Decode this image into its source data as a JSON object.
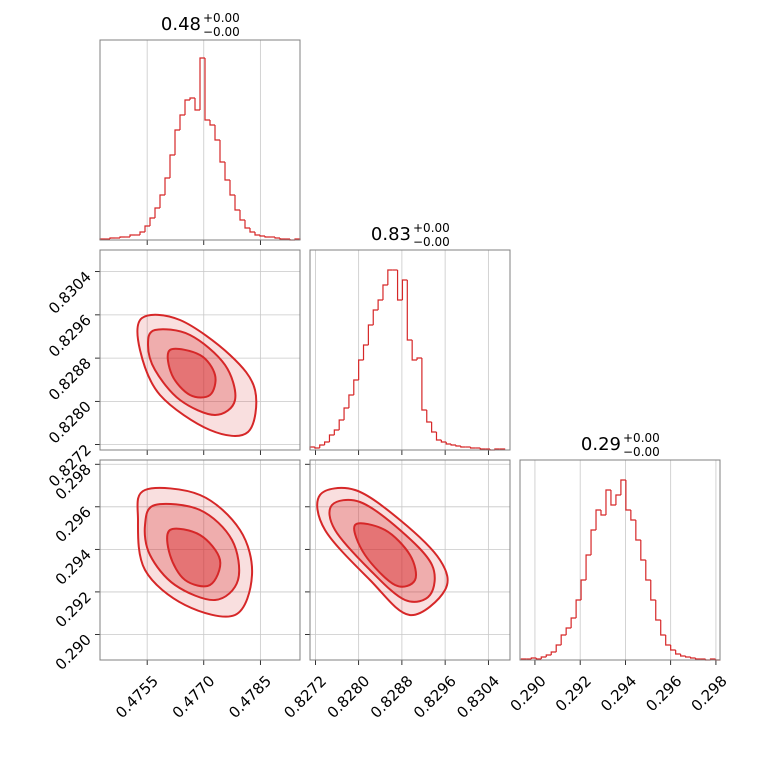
{
  "chart_data": [
    {
      "type": "histogram",
      "title": {
        "value": "0.48",
        "plus": "+0.00",
        "minus": "−0.00"
      },
      "color": "#d62728",
      "grid": true,
      "xlim": [
        0.47425,
        0.47955
      ],
      "ylim": [
        0,
        200
      ],
      "xticks": [
        0.4755,
        {
          "value": 0.477,
          "label": "0.4770"
        },
        0.4785
      ],
      "bins": [
        0.47425,
        0.4743825,
        0.474515,
        0.4746475,
        0.47478,
        0.4749125,
        0.475045,
        0.4751775,
        0.47531,
        0.4754425,
        0.475575,
        0.4757075,
        0.47584,
        0.4759725,
        0.476105,
        0.4762375,
        0.47637,
        0.4765025,
        0.476635,
        0.4767675,
        0.4769,
        0.4770325,
        0.477165,
        0.4772975,
        0.47743,
        0.4775625,
        0.477695,
        0.4778275,
        0.47796,
        0.4780925,
        0.478225,
        0.4783575,
        0.47849,
        0.4786225,
        0.478755,
        0.4788875,
        0.47902,
        0.4791525,
        0.479285,
        0.4794175,
        0.47955
      ],
      "counts": [
        1,
        1,
        2,
        2,
        3,
        3,
        5,
        5,
        8,
        14,
        22,
        32,
        45,
        62,
        85,
        110,
        125,
        140,
        142,
        130,
        182,
        120,
        115,
        100,
        78,
        60,
        45,
        30,
        20,
        12,
        8,
        5,
        4,
        3,
        3,
        2,
        1,
        1,
        0,
        1
      ]
    },
    {
      "type": "contour",
      "color": "#d62728",
      "grid": true,
      "xlim": [
        0.47425,
        0.47955
      ],
      "ylim": [
        0.8271,
        0.8308
      ],
      "xticks": [
        0.4755,
        {
          "value": 0.477,
          "label": "0.4770"
        },
        0.4785
      ],
      "yticks": [
        0.8272,
        {
          "value": 0.828,
          "label": "0.8280"
        },
        0.8288,
        0.8296,
        0.8304
      ],
      "contours": [
        [
          [
            0.475363,
            0.829542
          ],
          [
            0.47637,
            0.829505
          ],
          [
            0.477695,
            0.828858
          ],
          [
            0.478358,
            0.82821
          ],
          [
            0.478172,
            0.827433
          ],
          [
            0.477165,
            0.82747
          ],
          [
            0.47584,
            0.828118
          ],
          [
            0.47531,
            0.82895
          ]
        ],
        [
          [
            0.475708,
            0.82932
          ],
          [
            0.476635,
            0.829228
          ],
          [
            0.477563,
            0.828673
          ],
          [
            0.477828,
            0.828025
          ],
          [
            0.477298,
            0.827748
          ],
          [
            0.47637,
            0.828025
          ],
          [
            0.475708,
            0.82858
          ],
          [
            0.475522,
            0.829043
          ]
        ],
        [
          [
            0.476105,
            0.82895
          ],
          [
            0.4769,
            0.828858
          ],
          [
            0.477298,
            0.828488
          ],
          [
            0.477165,
            0.828118
          ],
          [
            0.476635,
            0.828118
          ],
          [
            0.476158,
            0.828488
          ]
        ]
      ]
    },
    {
      "type": "histogram",
      "title": {
        "value": "0.83",
        "plus": "+0.00",
        "minus": "−0.00"
      },
      "color": "#d62728",
      "grid": true,
      "xlim": [
        0.8271,
        0.8308
      ],
      "ylim": [
        0,
        200
      ],
      "xticks": [
        0.8272,
        {
          "value": 0.828,
          "label": "0.8280"
        },
        0.8288,
        0.8296,
        0.8304
      ],
      "bins": [
        0.8271,
        0.82719,
        0.82728,
        0.82737,
        0.82746,
        0.82755,
        0.82764,
        0.82773,
        0.82782,
        0.82791,
        0.828,
        0.82809,
        0.82818,
        0.82827,
        0.82836,
        0.82845,
        0.82854,
        0.82863,
        0.82872,
        0.82881,
        0.8289,
        0.82899,
        0.82908,
        0.82917,
        0.82926,
        0.82935,
        0.82944,
        0.82953,
        0.82962,
        0.82971,
        0.8298,
        0.82989,
        0.82998,
        0.83007,
        0.83016,
        0.83025,
        0.83034,
        0.83043,
        0.83052,
        0.83061,
        0.8307
      ],
      "counts": [
        3,
        2,
        5,
        8,
        15,
        20,
        30,
        42,
        55,
        70,
        90,
        105,
        125,
        140,
        150,
        165,
        180,
        180,
        150,
        170,
        110,
        90,
        92,
        40,
        28,
        18,
        10,
        8,
        6,
        5,
        4,
        3,
        3,
        2,
        2,
        1,
        1,
        0,
        1,
        1
      ]
    },
    {
      "type": "contour",
      "color": "#d62728",
      "grid": true,
      "xlim": [
        0.47425,
        0.47955
      ],
      "ylim": [
        0.2888,
        0.2982
      ],
      "xticks": [
        0.4755,
        {
          "value": 0.477,
          "label": "0.4770"
        },
        0.4785
      ],
      "yticks": [
        {
          "value": 0.29,
          "label": "0.290"
        },
        0.292,
        0.294,
        0.296,
        0.298
      ],
      "contours": [
        [
          [
            0.475443,
            0.29679
          ],
          [
            0.4769,
            0.296555
          ],
          [
            0.47796,
            0.29491
          ],
          [
            0.478278,
            0.292795
          ],
          [
            0.477828,
            0.290915
          ],
          [
            0.476503,
            0.291385
          ],
          [
            0.475443,
            0.29303
          ],
          [
            0.475257,
            0.29538
          ]
        ],
        [
          [
            0.475708,
            0.296085
          ],
          [
            0.4769,
            0.29585
          ],
          [
            0.477748,
            0.29444
          ],
          [
            0.477907,
            0.29256
          ],
          [
            0.477298,
            0.29162
          ],
          [
            0.476238,
            0.292325
          ],
          [
            0.475575,
            0.293735
          ],
          [
            0.475443,
            0.295145
          ]
        ],
        [
          [
            0.476105,
            0.29491
          ],
          [
            0.4769,
            0.294675
          ],
          [
            0.47743,
            0.2935
          ],
          [
            0.477165,
            0.292325
          ],
          [
            0.476503,
            0.29256
          ],
          [
            0.476105,
            0.293735
          ]
        ]
      ]
    },
    {
      "type": "contour",
      "color": "#d62728",
      "grid": true,
      "xlim": [
        0.8271,
        0.8308
      ],
      "ylim": [
        0.2888,
        0.2982
      ],
      "xticks": [
        0.8272,
        {
          "value": 0.828,
          "label": "0.8280"
        },
        0.8288,
        0.8296,
        0.8304
      ],
      "yticks": [
        {
          "value": 0.29,
          "label": "0.290"
        },
        0.292,
        0.294,
        0.296,
        0.298
      ],
      "contours": [
        [
          [
            0.827285,
            0.296555
          ],
          [
            0.827933,
            0.29679
          ],
          [
            0.828765,
            0.29538
          ],
          [
            0.829505,
            0.2935
          ],
          [
            0.829598,
            0.29209
          ],
          [
            0.828943,
            0.290915
          ],
          [
            0.82821,
            0.29256
          ],
          [
            0.827378,
            0.29491
          ]
        ],
        [
          [
            0.827507,
            0.296085
          ],
          [
            0.828025,
            0.296226
          ],
          [
            0.828765,
            0.29491
          ],
          [
            0.829357,
            0.293265
          ],
          [
            0.82932,
            0.291855
          ],
          [
            0.828858,
            0.29162
          ],
          [
            0.82821,
            0.29303
          ],
          [
            0.827563,
            0.29491
          ]
        ],
        [
          [
            0.827933,
            0.295145
          ],
          [
            0.828488,
            0.29491
          ],
          [
            0.82895,
            0.293735
          ],
          [
            0.829043,
            0.29256
          ],
          [
            0.828673,
            0.292325
          ],
          [
            0.828118,
            0.293735
          ]
        ]
      ]
    },
    {
      "type": "histogram",
      "title": {
        "value": "0.29",
        "plus": "+0.00",
        "minus": "−0.00"
      },
      "color": "#d62728",
      "grid": true,
      "xlim": [
        0.28934,
        0.29818
      ],
      "ylim": [
        0,
        200
      ],
      "xticks": [
        {
          "value": 0.29,
          "label": "0.290"
        },
        0.292,
        0.294,
        0.296,
        0.298
      ],
      "bins": [
        0.2894,
        0.28962,
        0.28984,
        0.29006,
        0.29028,
        0.2905,
        0.29072,
        0.29094,
        0.29116,
        0.29138,
        0.2916,
        0.29182,
        0.29204,
        0.29226,
        0.29248,
        0.2927,
        0.29292,
        0.29314,
        0.29336,
        0.29358,
        0.2938,
        0.29402,
        0.29424,
        0.29446,
        0.29468,
        0.2949,
        0.29512,
        0.29534,
        0.29556,
        0.29578,
        0.296,
        0.29622,
        0.29644,
        0.29666,
        0.29688,
        0.2971,
        0.29732,
        0.29754,
        0.29776,
        0.29798,
        0.2982
      ],
      "counts": [
        1,
        1,
        2,
        1,
        3,
        5,
        8,
        15,
        25,
        32,
        42,
        60,
        80,
        105,
        130,
        150,
        145,
        170,
        155,
        165,
        180,
        150,
        140,
        120,
        100,
        80,
        60,
        40,
        25,
        15,
        10,
        6,
        4,
        3,
        2,
        1,
        1,
        0,
        1,
        0
      ]
    }
  ]
}
